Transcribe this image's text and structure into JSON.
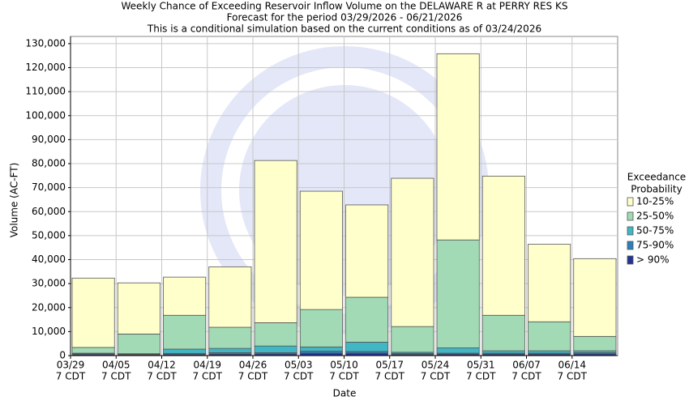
{
  "chart_data": {
    "type": "stacked_bar",
    "title": [
      "Weekly Chance of Exceeding Reservoir Inflow Volume on the DELAWARE R at PERRY RES KS",
      "Forecast for the period 03/29/2026 - 06/21/2026",
      "This is a conditional simulation based on the current conditions as of 03/24/2026"
    ],
    "x_label": "Date",
    "y_label": "Volume (AC-FT)",
    "categories": [
      "03/29",
      "04/05",
      "04/12",
      "04/19",
      "04/26",
      "05/03",
      "05/10",
      "05/17",
      "05/24",
      "05/31",
      "06/07",
      "06/14"
    ],
    "category_suffix": "7 CDT",
    "legend_title": [
      "Exceedance",
      "Probability"
    ],
    "legend": "right",
    "grid": true,
    "ylim": [
      0,
      133000
    ],
    "yticks": [
      0,
      {
        "value": 10000,
        "label": "10,000"
      },
      {
        "value": 20000,
        "label": "20,000"
      },
      {
        "value": 30000,
        "label": "30,000"
      },
      {
        "value": 40000,
        "label": "40,000"
      },
      {
        "value": 50000,
        "label": "50,000"
      },
      {
        "value": 60000,
        "label": "60,000"
      },
      {
        "value": 70000,
        "label": "70,000"
      },
      {
        "value": 80000,
        "label": "80,000"
      },
      {
        "value": 90000,
        "label": "90,000"
      },
      {
        "value": 100000,
        "label": "100,000"
      },
      {
        "value": 110000,
        "label": "110,000"
      },
      {
        "value": 120000,
        "label": "120,000"
      },
      {
        "value": 130000,
        "label": "130,000"
      }
    ],
    "series": [
      {
        "name": "> 90%",
        "color": "#253494",
        "values": [
          500,
          400,
          500,
          600,
          700,
          1000,
          1000,
          500,
          600,
          600,
          600,
          700
        ]
      },
      {
        "name": "75-90%",
        "color": "#2c7fb8",
        "values": [
          300,
          200,
          400,
          600,
          500,
          800,
          700,
          400,
          400,
          400,
          400,
          500
        ]
      },
      {
        "name": "50-75%",
        "color": "#41b6c4",
        "values": [
          200,
          200,
          1800,
          1800,
          2800,
          1800,
          3900,
          500,
          2200,
          1000,
          1000,
          800
        ]
      },
      {
        "name": "25-50%",
        "color": "#a1dab4",
        "values": [
          2400,
          8200,
          14100,
          8800,
          9700,
          15600,
          18700,
          10700,
          45000,
          14800,
          12100,
          6000
        ]
      },
      {
        "name": "10-25%",
        "color": "#ffffcc",
        "values": [
          28900,
          21300,
          15900,
          25200,
          67600,
          49300,
          38500,
          61800,
          77600,
          58000,
          32300,
          32400
        ]
      }
    ]
  }
}
